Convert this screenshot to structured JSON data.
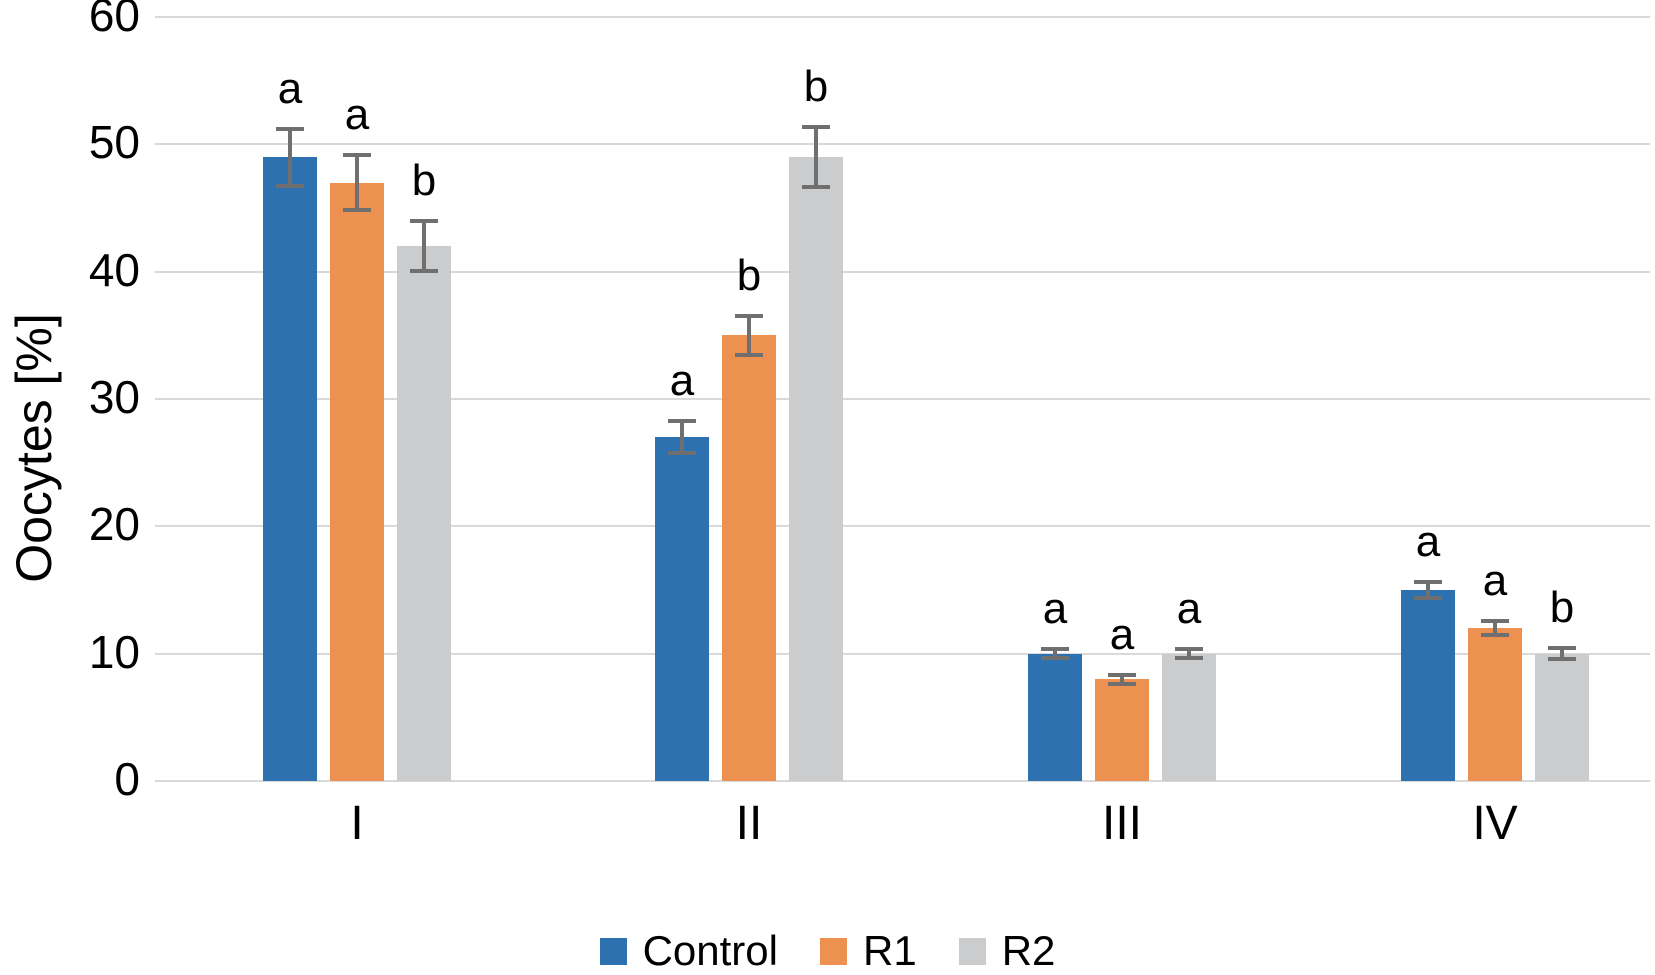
{
  "chart_data": {
    "type": "bar",
    "title": "",
    "ylabel": "Oocytes [%]",
    "xlabel": "",
    "ylim": [
      0,
      60
    ],
    "yticks": [
      0,
      10,
      20,
      30,
      40,
      50,
      60
    ],
    "grid": true,
    "legend_position": "bottom",
    "categories": [
      "I",
      "II",
      "III",
      "IV"
    ],
    "series": [
      {
        "name": "Control",
        "color": "#2e71b1",
        "values": [
          49,
          27,
          10,
          15
        ],
        "errors": [
          2.4,
          1.4,
          0.5,
          0.8
        ],
        "letters": [
          "a",
          "a",
          "a",
          "a"
        ]
      },
      {
        "name": "R1",
        "color": "#ec9150",
        "values": [
          47,
          35,
          8,
          12
        ],
        "errors": [
          2.3,
          1.7,
          0.5,
          0.7
        ],
        "letters": [
          "a",
          "b",
          "a",
          "a"
        ]
      },
      {
        "name": "R2",
        "color": "#cbcccd",
        "values": [
          42,
          49,
          10,
          10
        ],
        "errors": [
          2.1,
          2.5,
          0.5,
          0.6
        ],
        "letters": [
          "b",
          "b",
          "a",
          "b"
        ]
      }
    ],
    "colors": {
      "gridline": "#d9d9d9",
      "error_bar": "#6f6f6f",
      "text": "#000000",
      "background": "#ffffff"
    }
  }
}
